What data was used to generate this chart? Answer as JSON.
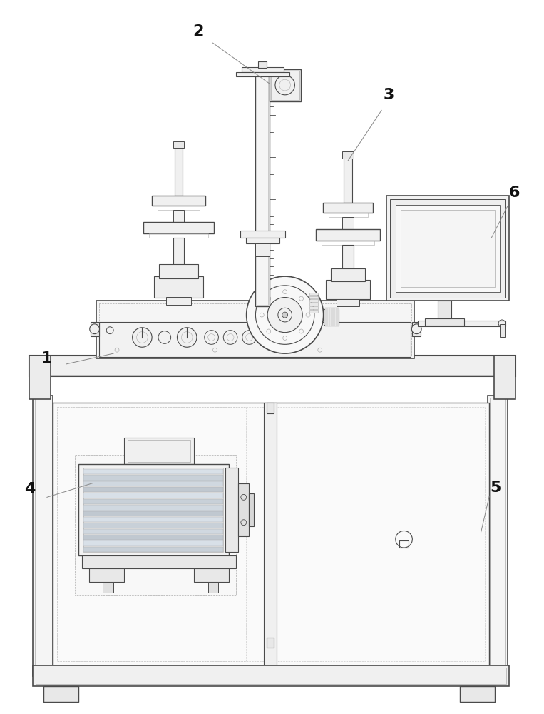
{
  "bg_color": "#ffffff",
  "lc": "#4a4a4a",
  "lc2": "#888888",
  "lc_thin": "#aaaaaa",
  "lc_dot": "#cccccc",
  "label_color": "#111111",
  "label_fontsize": 16,
  "fig_width": 7.63,
  "fig_height": 10.0,
  "note_color": "#888888"
}
